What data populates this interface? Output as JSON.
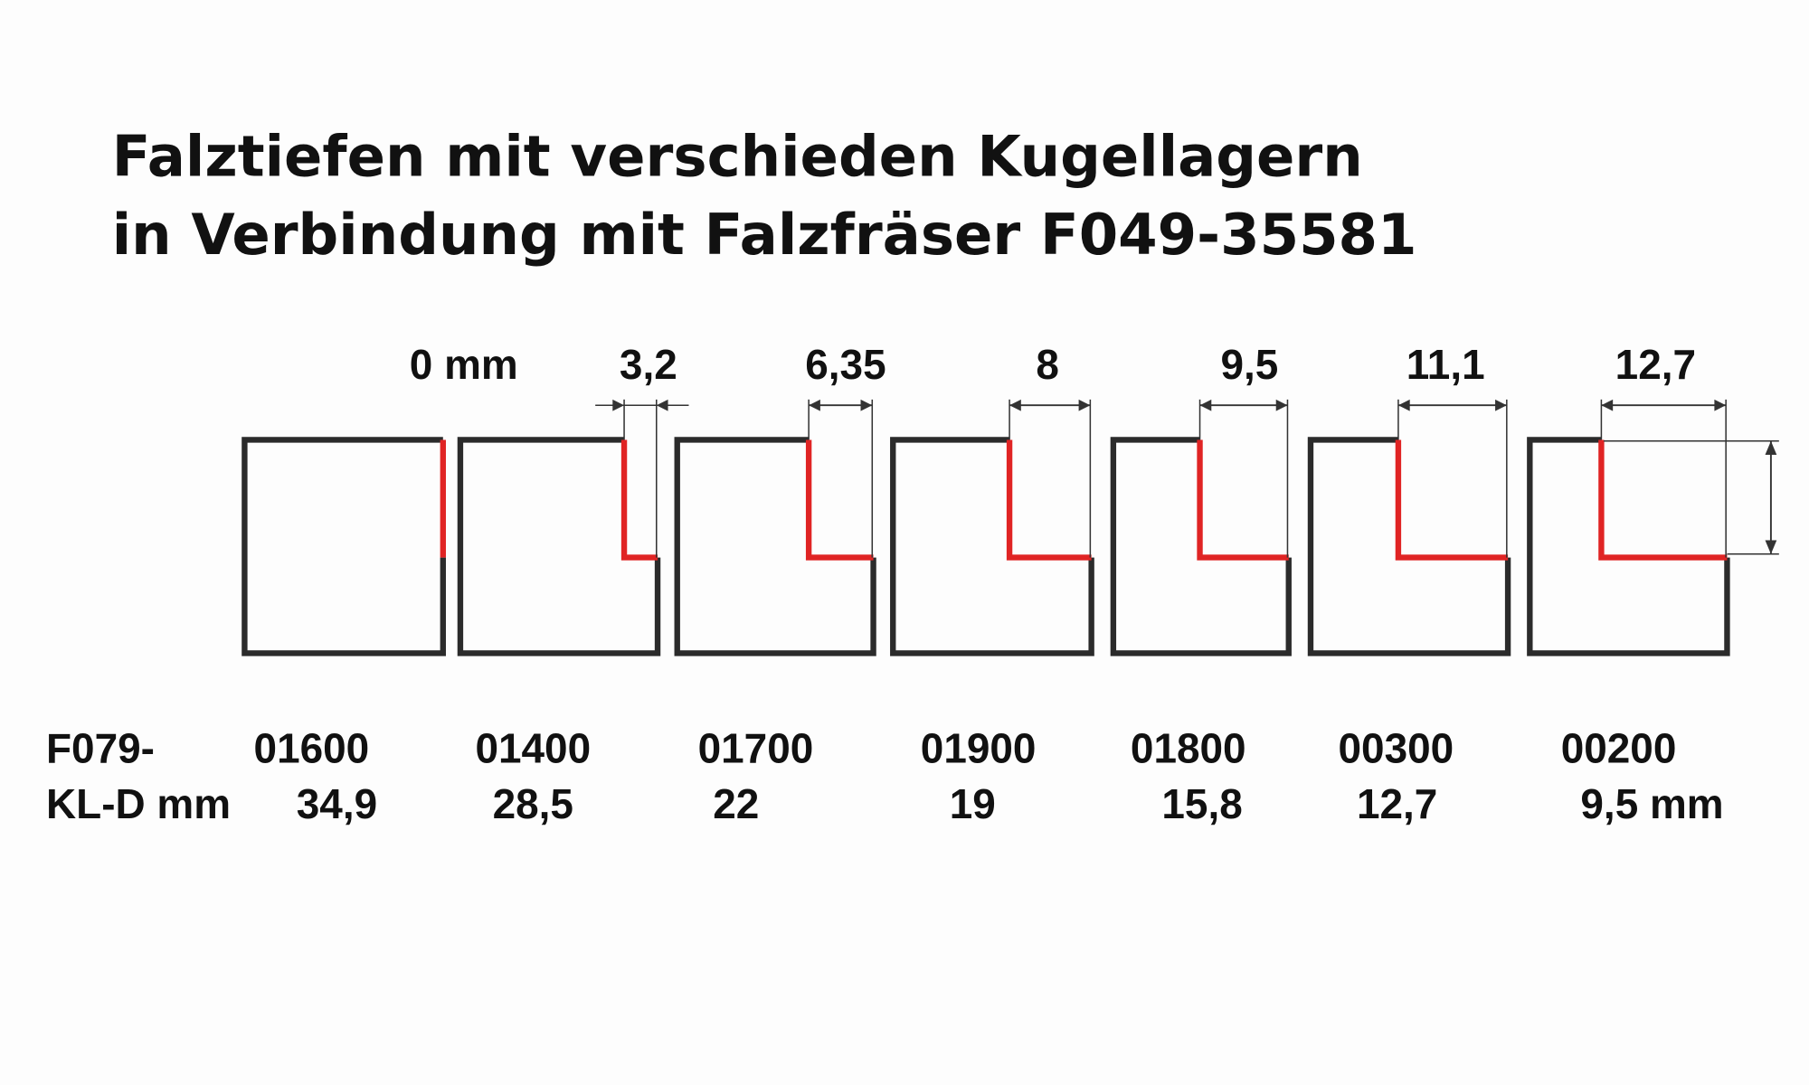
{
  "title": {
    "line1": "Falztiefen mit verschieden Kugellagern",
    "line2": "in Verbindung mit Falzfräser F049-35581"
  },
  "depth_labels": [
    "0 mm",
    "3,2",
    "6,35",
    "8",
    "9,5",
    "11,1",
    "12,7"
  ],
  "row_code": {
    "label": "F079-",
    "values": [
      "01600",
      "01400",
      "01700",
      "01900",
      "01800",
      "00300",
      "00200"
    ]
  },
  "row_diameter": {
    "label": "KL-D mm",
    "values": [
      "34,9",
      "28,5",
      "22",
      "19",
      "15,8",
      "12,7",
      "9,5 mm"
    ]
  },
  "colors": {
    "outline": "#2b2b2b",
    "rebate": "#e02424",
    "dimension": "#333333"
  }
}
